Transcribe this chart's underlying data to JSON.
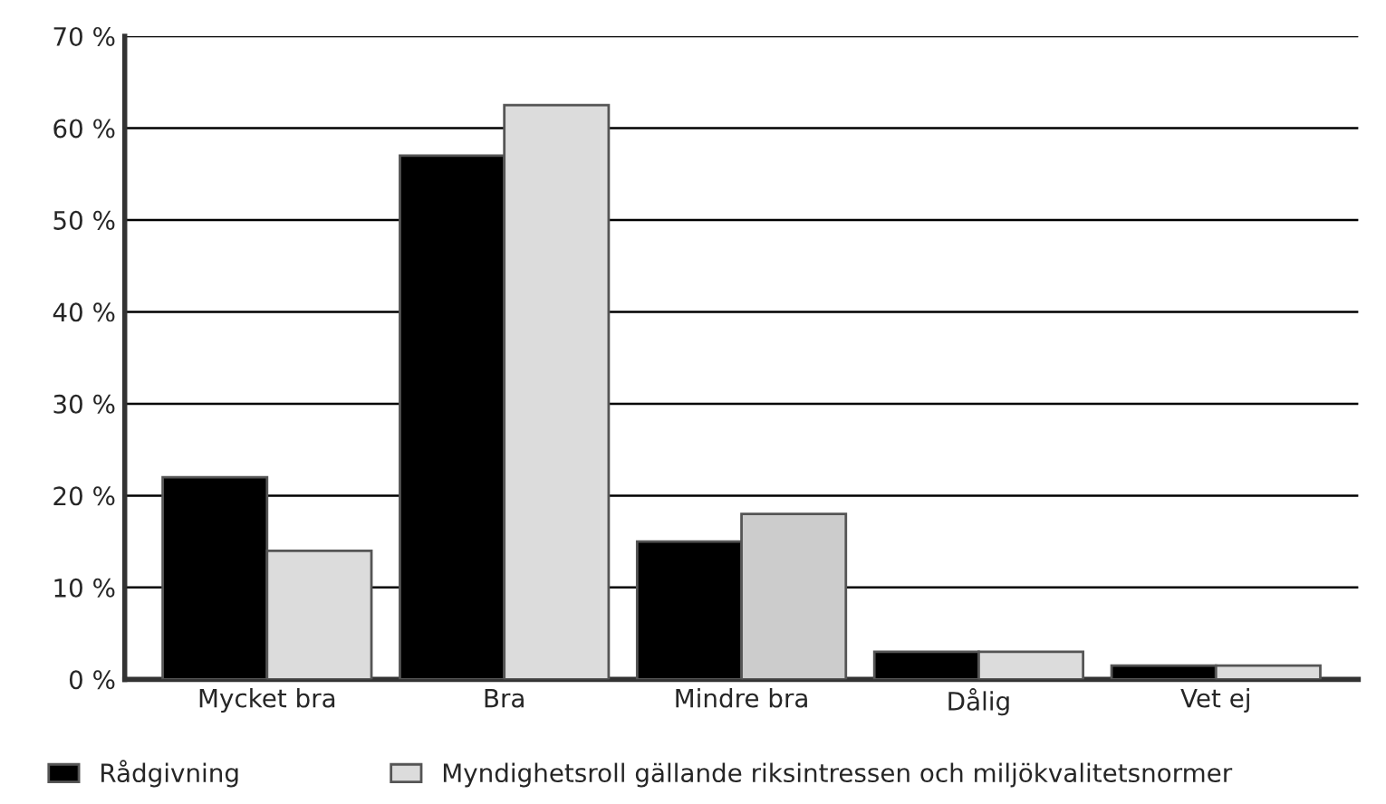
{
  "chart_data": {
    "type": "bar",
    "categories": [
      "Mycket bra",
      "Bra",
      "Mindre bra",
      "Dålig",
      "Vet ej"
    ],
    "series": [
      {
        "name": "Rådgivning",
        "color": "#000000",
        "values": [
          22,
          57,
          15,
          3,
          1.5
        ]
      },
      {
        "name": "Myndighetsroll gällande riksintressen och miljökvalitetsnormer",
        "color": "#dcdcdc",
        "colors": [
          "#dcdcdc",
          "#dcdcdc",
          "#cccccc",
          "#dcdcdc",
          "#dcdcdc"
        ],
        "values": [
          14,
          62.5,
          18,
          3,
          1.5
        ]
      }
    ],
    "ylim": [
      0,
      70
    ],
    "yticks": [
      {
        "value": 0,
        "label": "0 %"
      },
      {
        "value": 10,
        "label": "10 %"
      },
      {
        "value": 20,
        "label": "20 %"
      },
      {
        "value": 30,
        "label": "30 %"
      },
      {
        "value": 40,
        "label": "40 %"
      },
      {
        "value": 50,
        "label": "50 %"
      },
      {
        "value": 60,
        "label": "60 %"
      },
      {
        "value": 70,
        "label": "70 %"
      }
    ],
    "grid": "y",
    "legend": "bottom"
  }
}
